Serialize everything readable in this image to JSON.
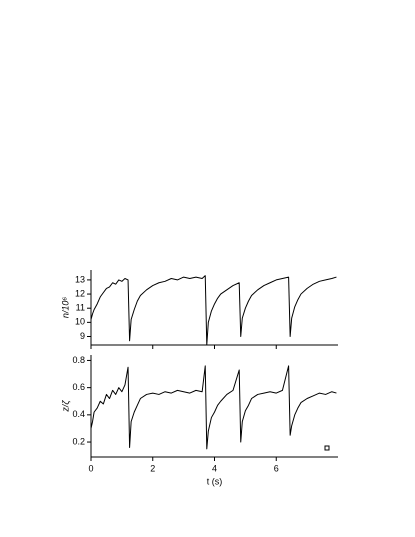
{
  "chart_data": [
    {
      "type": "line",
      "ylabel": "n/10⁶",
      "x": [
        0,
        0.05,
        0.1,
        0.2,
        0.3,
        0.4,
        0.5,
        0.6,
        0.7,
        0.8,
        0.9,
        1.0,
        1.1,
        1.2,
        1.25,
        1.3,
        1.4,
        1.5,
        1.6,
        1.8,
        2.0,
        2.2,
        2.4,
        2.6,
        2.8,
        3.0,
        3.2,
        3.4,
        3.6,
        3.7,
        3.75,
        3.8,
        3.9,
        4.0,
        4.1,
        4.2,
        4.4,
        4.6,
        4.8,
        4.85,
        4.9,
        5.0,
        5.1,
        5.2,
        5.4,
        5.6,
        5.8,
        6.0,
        6.2,
        6.4,
        6.45,
        6.5,
        6.6,
        6.7,
        6.8,
        7.0,
        7.2,
        7.4,
        7.6,
        7.8,
        7.95
      ],
      "series": [
        {
          "color": "#000000",
          "values": [
            10.2,
            10.6,
            10.9,
            11.3,
            11.8,
            12.1,
            12.4,
            12.5,
            12.8,
            12.7,
            13.0,
            12.9,
            13.1,
            13.0,
            8.7,
            10.2,
            10.9,
            11.5,
            11.9,
            12.3,
            12.6,
            12.8,
            12.9,
            13.1,
            13.0,
            13.2,
            13.1,
            13.2,
            13.1,
            13.3,
            8.4,
            10.0,
            10.8,
            11.3,
            11.7,
            12.0,
            12.3,
            12.6,
            12.8,
            9.0,
            10.3,
            11.0,
            11.5,
            11.9,
            12.3,
            12.6,
            12.8,
            13.0,
            13.1,
            13.2,
            9.0,
            10.3,
            11.1,
            11.6,
            12.0,
            12.4,
            12.7,
            12.9,
            13.0,
            13.1,
            13.2
          ]
        }
      ],
      "xlim": [
        0,
        8
      ],
      "xticks": [
        0,
        2,
        4,
        6
      ],
      "ylim": [
        8.4,
        13.7
      ],
      "yticks": [
        9,
        10,
        11,
        12,
        13
      ]
    },
    {
      "type": "line",
      "ylabel": "z/ζ",
      "xlabel": "t (s)",
      "x": [
        0,
        0.05,
        0.1,
        0.2,
        0.3,
        0.4,
        0.5,
        0.6,
        0.7,
        0.8,
        0.9,
        1.0,
        1.1,
        1.2,
        1.25,
        1.3,
        1.4,
        1.5,
        1.6,
        1.8,
        2.0,
        2.2,
        2.4,
        2.6,
        2.8,
        3.0,
        3.2,
        3.4,
        3.6,
        3.7,
        3.75,
        3.8,
        3.9,
        4.0,
        4.1,
        4.2,
        4.4,
        4.6,
        4.8,
        4.85,
        4.9,
        5.0,
        5.1,
        5.2,
        5.4,
        5.6,
        5.8,
        6.0,
        6.2,
        6.4,
        6.45,
        6.5,
        6.6,
        6.7,
        6.8,
        7.0,
        7.2,
        7.4,
        7.6,
        7.8,
        7.95
      ],
      "series": [
        {
          "color": "#000000",
          "values": [
            0.3,
            0.35,
            0.42,
            0.45,
            0.5,
            0.48,
            0.55,
            0.52,
            0.58,
            0.55,
            0.6,
            0.57,
            0.62,
            0.75,
            0.16,
            0.35,
            0.42,
            0.47,
            0.52,
            0.55,
            0.56,
            0.55,
            0.57,
            0.56,
            0.58,
            0.57,
            0.56,
            0.58,
            0.57,
            0.76,
            0.15,
            0.28,
            0.38,
            0.42,
            0.47,
            0.5,
            0.55,
            0.58,
            0.73,
            0.2,
            0.35,
            0.43,
            0.47,
            0.52,
            0.55,
            0.56,
            0.57,
            0.56,
            0.58,
            0.76,
            0.25,
            0.32,
            0.4,
            0.45,
            0.49,
            0.52,
            0.54,
            0.56,
            0.55,
            0.57,
            0.56
          ]
        }
      ],
      "xlim": [
        0,
        8
      ],
      "xticks": [
        0,
        2,
        4,
        6
      ],
      "ylim": [
        0.09,
        0.84
      ],
      "yticks": [
        0.2,
        0.4,
        0.6,
        0.8
      ]
    }
  ]
}
